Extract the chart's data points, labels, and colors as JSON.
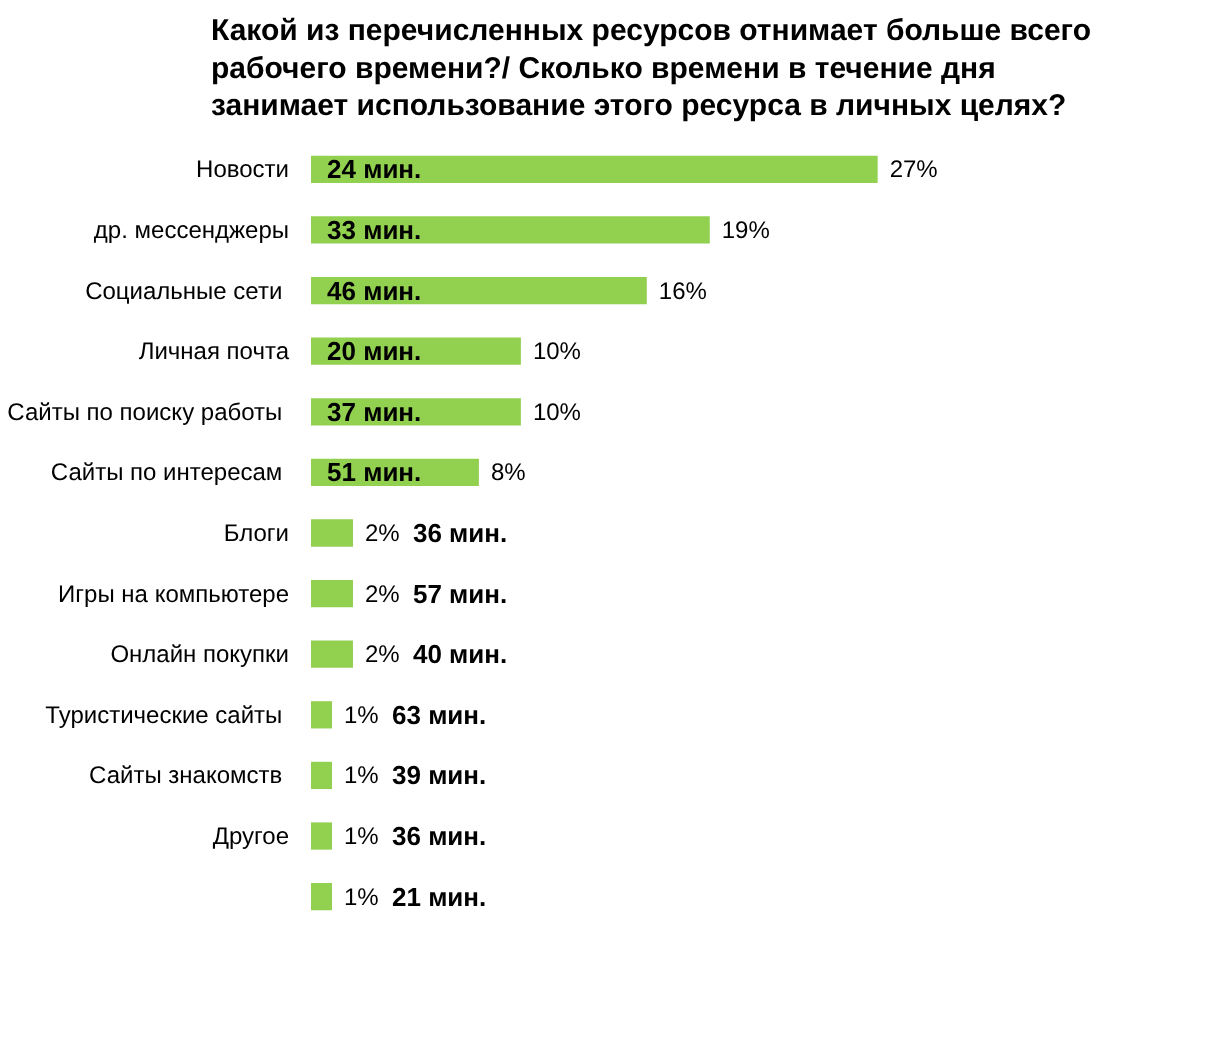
{
  "chart_data": {
    "type": "bar",
    "orientation": "horizontal",
    "title": "Какой из перечисленных ресурсов отнимает больше всего рабочего времени?/ Сколько времени в течение дня занимает использование этого ресурса в личных целях?",
    "categories": [
      "Новости",
      "др. мессенджеры",
      "Социальные  сети",
      "Личная почта",
      "Сайты  по поиску работы",
      "Сайты  по интересам",
      "Блоги",
      "Игры на компьютере",
      "Онлайн покупки",
      "Туристические  сайты",
      "Сайты  знакомств",
      "Другое",
      null
    ],
    "values": [
      27,
      19,
      16,
      10,
      10,
      8,
      2,
      2,
      2,
      1,
      1,
      1,
      1
    ],
    "value_labels": [
      "27%",
      "19%",
      "16%",
      "10%",
      "10%",
      "8%",
      "2%",
      "2%",
      "2%",
      "1%",
      "1%",
      "1%",
      "1%"
    ],
    "color": "#92d050",
    "annotations": [
      "24 мин.",
      "33 мин.",
      "46 мин.",
      "20 мин.",
      "37 мин.",
      "51 мин.",
      "36 мин.",
      "57 мин.",
      "40 мин.",
      "63 мин.",
      "39 мин.",
      "36 мин.",
      "21 мин."
    ],
    "grid": false
  }
}
